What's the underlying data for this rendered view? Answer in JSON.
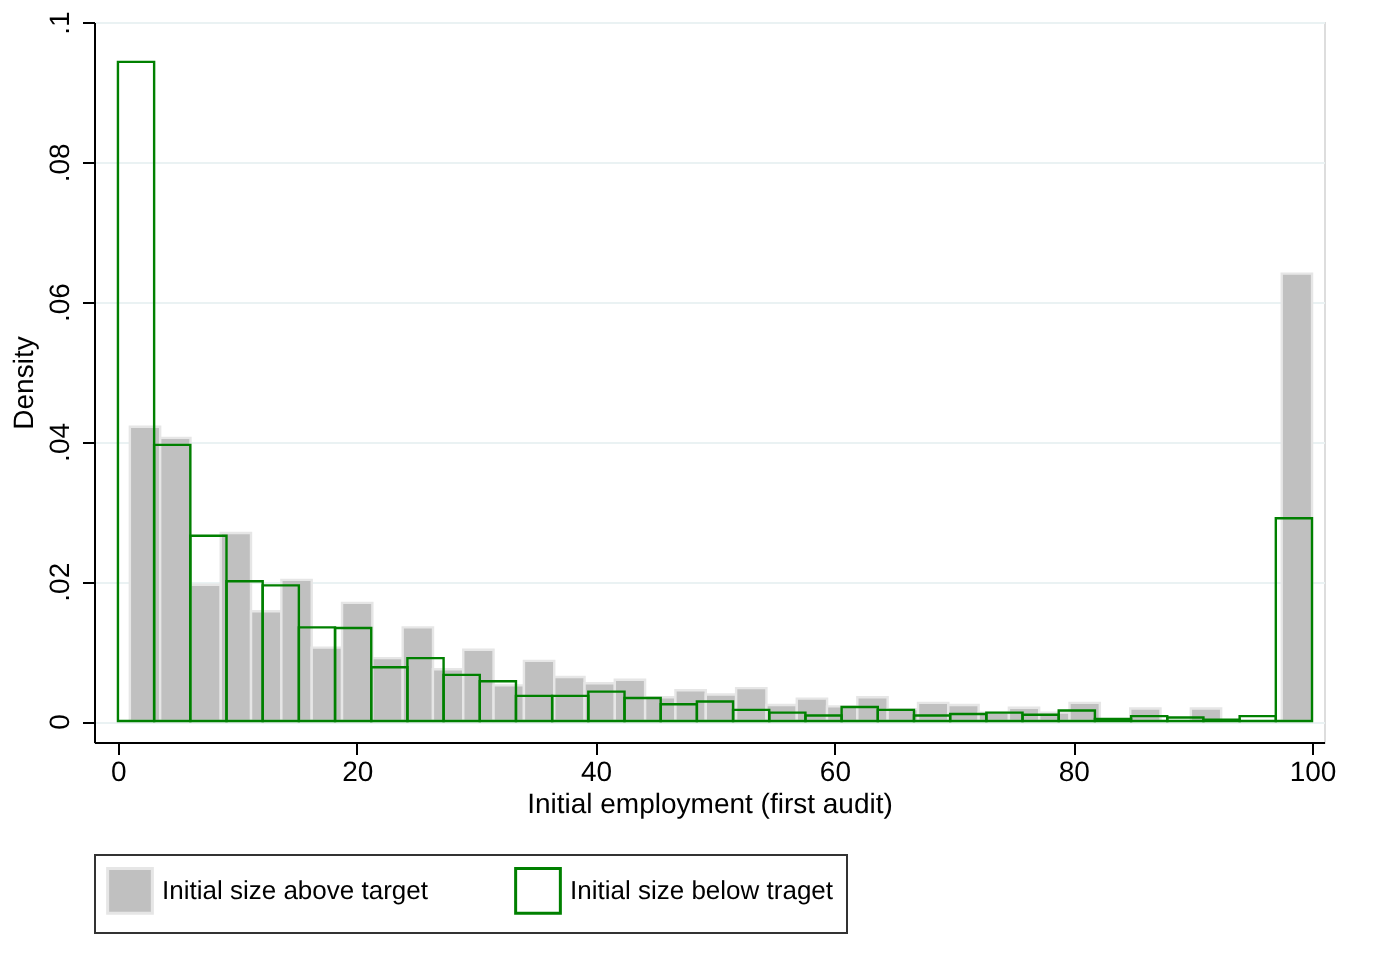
{
  "chart_data": {
    "type": "bar",
    "xlabel": "Initial employment (first audit)",
    "ylabel": "Density",
    "series": [
      {
        "name": "Initial size above target",
        "color": "#c0c0c0",
        "x": [
          2.27,
          4.81,
          7.35,
          9.88,
          12.42,
          14.96,
          17.5,
          20.04,
          22.58,
          25.12,
          27.65,
          30.19,
          32.73,
          35.27,
          37.81,
          40.35,
          42.88,
          45.42,
          47.96,
          50.5,
          53.04,
          55.58,
          58.12,
          60.65,
          63.19,
          65.73,
          68.27,
          70.81,
          73.35,
          75.88,
          78.42,
          80.96,
          83.5,
          86.04,
          88.58,
          91.12,
          93.65,
          96.19,
          98.73
        ],
        "values": [
          0.0421,
          0.0405,
          0.0195,
          0.0269,
          0.0157,
          0.0202,
          0.0105,
          0.0169,
          0.009,
          0.0134,
          0.0074,
          0.0102,
          0.0051,
          0.0086,
          0.0063,
          0.0054,
          0.0059,
          0.0034,
          0.0044,
          0.0038,
          0.0047,
          0.0023,
          0.0032,
          0.0021,
          0.0034,
          0.0017,
          0.0026,
          0.0023,
          0.0012,
          0.0019,
          0.0012,
          0.0026,
          null,
          0.0018,
          null,
          0.0018,
          null,
          null,
          0.064
        ]
      },
      {
        "name": "Initial size below traget",
        "color": "#008000",
        "x": [
          1.52,
          4.55,
          7.58,
          10.61,
          13.64,
          16.67,
          19.7,
          22.73,
          25.76,
          28.79,
          31.82,
          34.85,
          37.88,
          40.91,
          43.94,
          46.97,
          50,
          53.03,
          56.06,
          59.09,
          62.12,
          65.15,
          68.18,
          71.21,
          74.24,
          77.27,
          80.3,
          83.33,
          86.36,
          89.39,
          92.42,
          95.45,
          98.48
        ],
        "values": [
          0.0943,
          0.0395,
          0.0265,
          0.02,
          0.0194,
          0.0134,
          0.0133,
          0.0077,
          0.009,
          0.0066,
          0.0057,
          0.0036,
          0.0036,
          0.0042,
          0.0033,
          0.0024,
          0.0028,
          0.0016,
          0.0012,
          0.0008,
          0.002,
          0.0016,
          0.0008,
          0.001,
          0.0012,
          0.0009,
          0.0015,
          0.0003,
          0.0007,
          0.0005,
          0.0002,
          0.0007,
          0.029
        ]
      }
    ],
    "xlim": [
      -2,
      101
    ],
    "xticks": [
      0,
      20,
      40,
      60,
      80,
      100
    ],
    "ylim": [
      -0.003,
      0.1
    ],
    "yticks": [
      {
        "value": 0,
        "label": "0"
      },
      {
        "value": 0.02,
        "label": ".02"
      },
      {
        "value": 0.04,
        "label": ".04"
      },
      {
        "value": 0.06,
        "label": ".06"
      },
      {
        "value": 0.08,
        "label": ".08"
      },
      {
        "value": 0.1,
        "label": ".1"
      }
    ],
    "grid": "y",
    "legend": "bottom"
  }
}
